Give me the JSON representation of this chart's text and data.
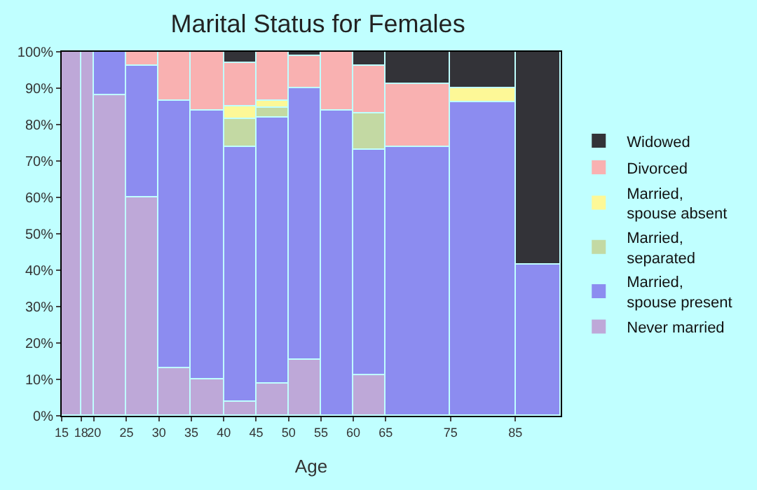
{
  "chart_data": {
    "type": "bar",
    "stacked": true,
    "title": "Marital Status for Females",
    "xlabel": "Age",
    "x": [
      16.5,
      19,
      22.5,
      27.5,
      32.5,
      37.5,
      42.5,
      47.5,
      52.5,
      57.5,
      62.5,
      70,
      80,
      88.5
    ],
    "xlim": [
      15,
      92
    ],
    "xticks": [
      15,
      18,
      20,
      25,
      30,
      35,
      40,
      45,
      50,
      55,
      60,
      65,
      75,
      85
    ],
    "ylim": [
      0,
      100
    ],
    "yticks": [
      {
        "value": 0,
        "label": "0%"
      },
      {
        "value": 10,
        "label": "10%"
      },
      {
        "value": 20,
        "label": "20%"
      },
      {
        "value": 30,
        "label": "30%"
      },
      {
        "value": 40,
        "label": "40%"
      },
      {
        "value": 50,
        "label": "50%"
      },
      {
        "value": 60,
        "label": "60%"
      },
      {
        "value": 70,
        "label": "70%"
      },
      {
        "value": 80,
        "label": "80%"
      },
      {
        "value": 90,
        "label": "90%"
      },
      {
        "value": 100,
        "label": "100%"
      }
    ],
    "legend": "right",
    "series": [
      {
        "name": "Never married",
        "color": "#bea8d8",
        "values": [
          100,
          100,
          88,
          60,
          13,
          10,
          4,
          9,
          15.5,
          null,
          11,
          null,
          null,
          null
        ]
      },
      {
        "name": "Married, spouse present",
        "color": "#8c8cf0",
        "values": [
          null,
          null,
          12,
          36,
          73.5,
          74,
          70,
          73,
          74.5,
          84,
          62,
          74,
          86,
          41.5
        ]
      },
      {
        "name": "Married, separated",
        "color": "#c3d9a3",
        "values": [
          null,
          null,
          null,
          null,
          null,
          null,
          7.5,
          2.5,
          null,
          null,
          10,
          null,
          null,
          null
        ]
      },
      {
        "name": "Married, spouse absent",
        "color": "#fdf897",
        "values": [
          null,
          null,
          null,
          null,
          null,
          null,
          3.5,
          2,
          null,
          null,
          null,
          null,
          4,
          null
        ]
      },
      {
        "name": "Divorced",
        "color": "#f9b1b1",
        "values": [
          null,
          null,
          null,
          4,
          13.5,
          16,
          12,
          13.5,
          9,
          16,
          13,
          17,
          null,
          null
        ]
      },
      {
        "name": "Widowed",
        "color": "#333338",
        "values": [
          null,
          null,
          null,
          null,
          null,
          null,
          3,
          null,
          1,
          null,
          4,
          9,
          10,
          58.5
        ]
      }
    ]
  }
}
